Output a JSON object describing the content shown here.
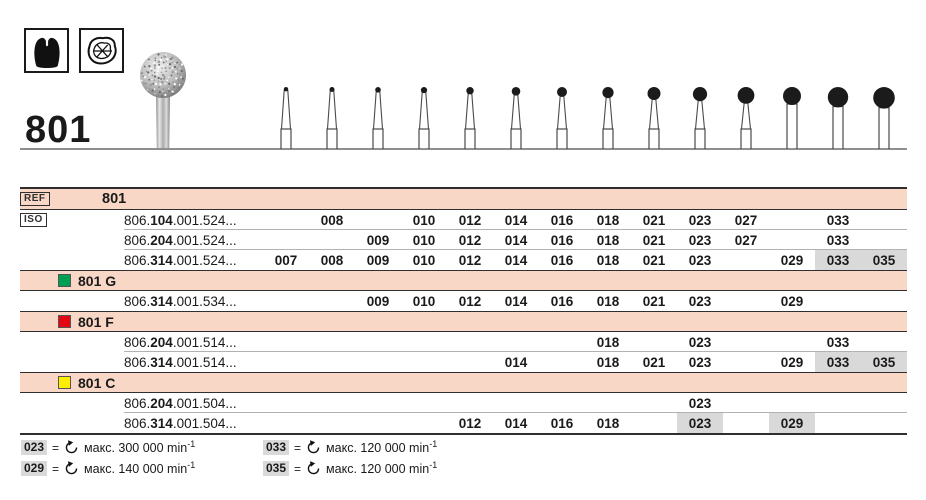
{
  "header": {
    "ref_number": "801",
    "icons": [
      "crown-preparation-icon",
      "occlusal-surface-icon"
    ]
  },
  "colors": {
    "section_pink": "#f9d7c6",
    "gray_cell": "#d9d9d9",
    "green": "#00a052",
    "red": "#e30613",
    "yellow": "#ffed00"
  },
  "burs": {
    "sizes_mm": [
      0.7,
      0.8,
      0.9,
      1.0,
      1.2,
      1.4,
      1.6,
      1.8,
      2.1,
      2.3,
      2.7,
      2.9,
      3.3,
      3.5
    ],
    "straight_from_index": 11
  },
  "table": {
    "columns": [
      "007",
      "008",
      "009",
      "010",
      "012",
      "014",
      "016",
      "018",
      "021",
      "023",
      "027",
      "029",
      "033",
      "035"
    ],
    "rows": [
      {
        "type": "section",
        "badge": "REF",
        "label": "801",
        "square": null
      },
      {
        "type": "code",
        "badge": "ISO",
        "code": [
          "806.",
          "104",
          ".001.524..."
        ],
        "sizes": [
          "008",
          "010",
          "012",
          "014",
          "016",
          "018",
          "021",
          "023",
          "027",
          "033"
        ],
        "gray": []
      },
      {
        "type": "code",
        "badge": null,
        "code": [
          "806.",
          "204",
          ".001.524..."
        ],
        "sizes": [
          "009",
          "010",
          "012",
          "014",
          "016",
          "018",
          "021",
          "023",
          "027",
          "033"
        ],
        "gray": []
      },
      {
        "type": "code",
        "badge": null,
        "code": [
          "806.",
          "314",
          ".001.524..."
        ],
        "sizes": [
          "007",
          "008",
          "009",
          "010",
          "012",
          "014",
          "016",
          "018",
          "021",
          "023",
          "029",
          "033",
          "035"
        ],
        "gray": [
          "033",
          "035"
        ]
      },
      {
        "type": "section",
        "badge": null,
        "label": "801 G",
        "square": "#00a052"
      },
      {
        "type": "code",
        "badge": null,
        "code": [
          "806.",
          "314",
          ".001.534..."
        ],
        "sizes": [
          "009",
          "010",
          "012",
          "014",
          "016",
          "018",
          "021",
          "023",
          "029"
        ],
        "gray": []
      },
      {
        "type": "section",
        "badge": null,
        "label": "801 F",
        "square": "#e30613"
      },
      {
        "type": "code",
        "badge": null,
        "code": [
          "806.",
          "204",
          ".001.514..."
        ],
        "sizes": [
          "018",
          "023",
          "033"
        ],
        "gray": []
      },
      {
        "type": "code",
        "badge": null,
        "code": [
          "806.",
          "314",
          ".001.514..."
        ],
        "sizes": [
          "014",
          "018",
          "021",
          "023",
          "029",
          "033",
          "035"
        ],
        "gray": [
          "033",
          "035"
        ]
      },
      {
        "type": "section",
        "badge": null,
        "label": "801 C",
        "square": "#ffed00"
      },
      {
        "type": "code",
        "badge": null,
        "code": [
          "806.",
          "204",
          ".001.504..."
        ],
        "sizes": [
          "023"
        ],
        "gray": []
      },
      {
        "type": "code",
        "badge": null,
        "code": [
          "806.",
          "314",
          ".001.504..."
        ],
        "sizes": [
          "012",
          "014",
          "016",
          "018",
          "023",
          "029"
        ],
        "gray": [
          "023",
          "029"
        ]
      }
    ]
  },
  "footnotes": {
    "eq": "=",
    "items": [
      {
        "size": "023",
        "text": "макс. 300 000 min",
        "sup": "-1"
      },
      {
        "size": "029",
        "text": "макс. 140 000 min",
        "sup": "-1"
      },
      {
        "size": "033",
        "text": "макс. 120 000 min",
        "sup": "-1"
      },
      {
        "size": "035",
        "text": "макс. 120 000 min",
        "sup": "-1"
      }
    ]
  }
}
